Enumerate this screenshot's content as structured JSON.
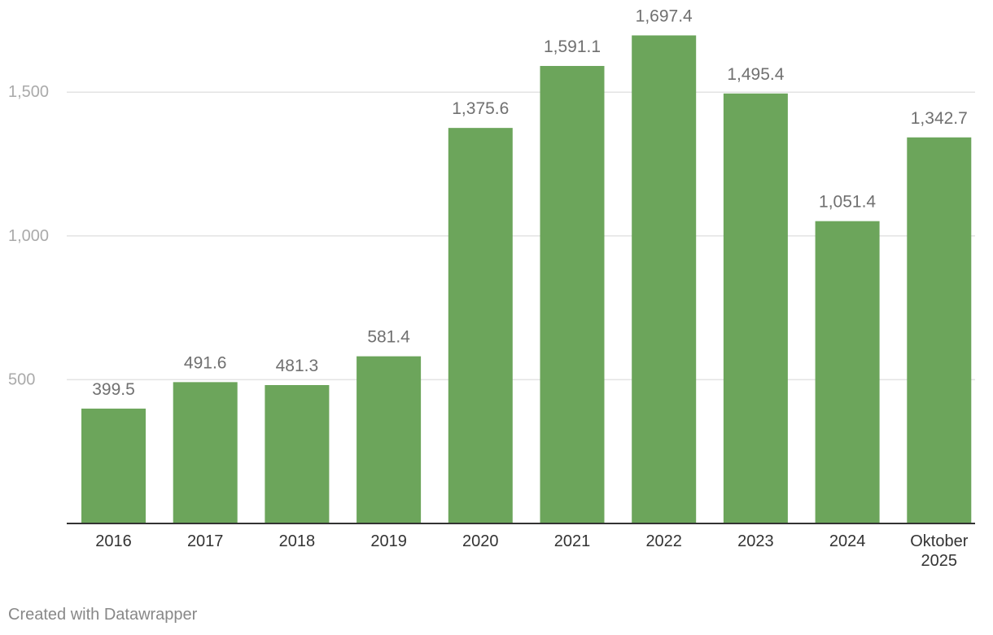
{
  "chart_data": {
    "type": "bar",
    "categories": [
      "2016",
      "2017",
      "2018",
      "2019",
      "2020",
      "2021",
      "2022",
      "2023",
      "2024",
      "Oktober 2025"
    ],
    "category_lines": [
      [
        "2016"
      ],
      [
        "2017"
      ],
      [
        "2018"
      ],
      [
        "2019"
      ],
      [
        "2020"
      ],
      [
        "2021"
      ],
      [
        "2022"
      ],
      [
        "2023"
      ],
      [
        "2024"
      ],
      [
        "Oktober",
        "2025"
      ]
    ],
    "values": [
      399.5,
      491.6,
      481.3,
      581.4,
      1375.6,
      1591.1,
      1697.4,
      1495.4,
      1051.4,
      1342.7
    ],
    "value_labels": [
      "399.5",
      "491.6",
      "481.3",
      "581.4",
      "1,375.6",
      "1,591.1",
      "1,697.4",
      "1,495.4",
      "1,051.4",
      "1,342.7"
    ],
    "yticks": [
      500,
      1000,
      1500
    ],
    "ytick_labels": [
      "500",
      "1,000",
      "1,500"
    ],
    "ylim": [
      0,
      1800
    ],
    "grid": true,
    "bar_color": "#6ca55b",
    "title": "",
    "xlabel": "",
    "ylabel": ""
  },
  "footer": {
    "credit": "Created with Datawrapper"
  }
}
